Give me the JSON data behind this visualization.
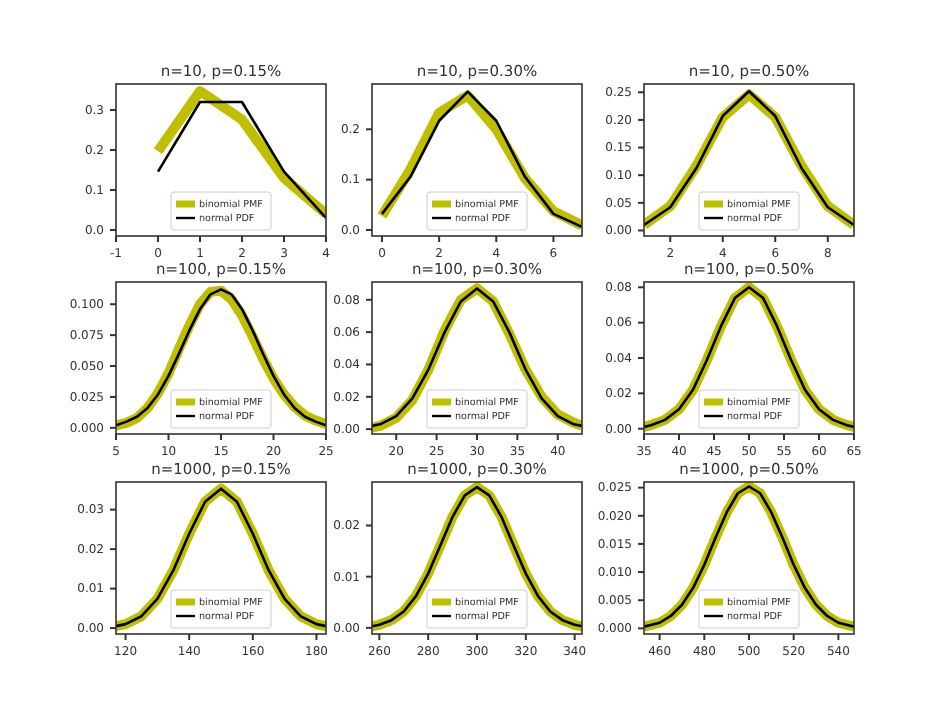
{
  "chart_data": [
    {
      "type": "line",
      "title": "n=10, p=0.15%",
      "xlim": [
        -1,
        4
      ],
      "xticks": [
        -1,
        0,
        1,
        2,
        3,
        4
      ],
      "ylim": [
        -0.015,
        0.365
      ],
      "yticks": [
        {
          "value": 0,
          "label": "0.0"
        },
        0.1,
        0.2,
        0.3
      ],
      "legend": "bottom",
      "series": [
        {
          "name": "binomial PMF",
          "color": "#bfbf00",
          "x": [
            0,
            1,
            2,
            3,
            4
          ],
          "values": [
            0.197,
            0.347,
            0.276,
            0.13,
            0.04
          ]
        },
        {
          "name": "normal PDF",
          "color": "#000000",
          "x": [
            0,
            1,
            2,
            3,
            4
          ],
          "values": [
            0.146,
            0.32,
            0.32,
            0.146,
            0.03
          ]
        }
      ]
    },
    {
      "type": "line",
      "title": "n=10, p=0.30%",
      "xlim": [
        -0.35,
        7
      ],
      "xticks": [
        0,
        2,
        4,
        6
      ],
      "ylim": [
        -0.012,
        0.29
      ],
      "yticks": [
        {
          "value": 0,
          "label": "0.0"
        },
        0.1,
        0.2
      ],
      "legend": "bottom",
      "series": [
        {
          "name": "binomial PMF",
          "color": "#bfbf00",
          "x": [
            0,
            1,
            2,
            3,
            4,
            5,
            6,
            7
          ],
          "values": [
            0.028,
            0.121,
            0.233,
            0.267,
            0.2,
            0.103,
            0.037,
            0.009
          ]
        },
        {
          "name": "normal PDF",
          "color": "#000000",
          "x": [
            0,
            1,
            2,
            3,
            4,
            5,
            6,
            7
          ],
          "values": [
            0.032,
            0.106,
            0.217,
            0.275,
            0.217,
            0.106,
            0.032,
            0.006
          ]
        }
      ]
    },
    {
      "type": "line",
      "title": "n=10, p=0.50%",
      "xlim": [
        1,
        9
      ],
      "xticks": [
        2,
        4,
        6,
        8
      ],
      "ylim": [
        -0.01,
        0.265
      ],
      "yticks": [
        {
          "value": 0,
          "label": "0.00"
        },
        0.05,
        {
          "value": 0.1,
          "label": "0.10"
        },
        0.15,
        {
          "value": 0.2,
          "label": "0.20"
        },
        0.25
      ],
      "legend": "bottom",
      "series": [
        {
          "name": "binomial PMF",
          "color": "#bfbf00",
          "x": [
            1,
            2,
            3,
            4,
            5,
            6,
            7,
            8,
            9
          ],
          "values": [
            0.01,
            0.044,
            0.117,
            0.205,
            0.246,
            0.205,
            0.117,
            0.044,
            0.01
          ]
        },
        {
          "name": "normal PDF",
          "color": "#000000",
          "x": [
            1,
            2,
            3,
            4,
            5,
            6,
            7,
            8,
            9
          ],
          "values": [
            0.01,
            0.042,
            0.113,
            0.207,
            0.252,
            0.207,
            0.113,
            0.042,
            0.01
          ]
        }
      ]
    },
    {
      "type": "line",
      "title": "n=100, p=0.15%",
      "xlim": [
        5,
        25
      ],
      "xticks": [
        5,
        10,
        15,
        20,
        25
      ],
      "ylim": [
        -0.005,
        0.118
      ],
      "yticks": [
        {
          "value": 0,
          "label": "0.000"
        },
        0.025,
        {
          "value": 0.05,
          "label": "0.050"
        },
        0.075,
        {
          "value": 0.1,
          "label": "0.100"
        }
      ],
      "legend": "bottom",
      "series": [
        {
          "name": "binomial PMF",
          "color": "#bfbf00",
          "x": [
            5,
            6,
            7,
            8,
            9,
            10,
            11,
            12,
            13,
            14,
            15,
            16,
            17,
            18,
            19,
            20,
            21,
            22,
            23,
            24,
            25
          ],
          "values": [
            0.002,
            0.004,
            0.008,
            0.016,
            0.028,
            0.044,
            0.064,
            0.083,
            0.1,
            0.11,
            0.111,
            0.104,
            0.091,
            0.074,
            0.056,
            0.04,
            0.027,
            0.017,
            0.01,
            0.006,
            0.003
          ]
        },
        {
          "name": "normal PDF",
          "color": "#000000",
          "x": [
            5,
            6,
            7,
            8,
            9,
            10,
            11,
            12,
            13,
            14,
            15,
            16,
            17,
            18,
            19,
            20,
            21,
            22,
            23,
            24,
            25
          ],
          "values": [
            0.002,
            0.005,
            0.009,
            0.016,
            0.027,
            0.042,
            0.06,
            0.079,
            0.096,
            0.108,
            0.112,
            0.108,
            0.096,
            0.079,
            0.06,
            0.042,
            0.027,
            0.016,
            0.009,
            0.005,
            0.002
          ]
        }
      ]
    },
    {
      "type": "line",
      "title": "n=100, p=0.30%",
      "xlim": [
        17,
        43
      ],
      "xticks": [
        20,
        25,
        30,
        35,
        40
      ],
      "ylim": [
        -0.003,
        0.091
      ],
      "yticks": [
        {
          "value": 0,
          "label": "0.00"
        },
        0.02,
        0.04,
        0.06,
        0.08
      ],
      "legend": "bottom",
      "series": [
        {
          "name": "binomial PMF",
          "color": "#bfbf00",
          "x": [
            17,
            18,
            20,
            22,
            24,
            26,
            28,
            30,
            32,
            34,
            36,
            38,
            40,
            42,
            43
          ],
          "values": [
            0.001,
            0.002,
            0.007,
            0.018,
            0.037,
            0.061,
            0.08,
            0.087,
            0.079,
            0.059,
            0.037,
            0.02,
            0.009,
            0.004,
            0.002
          ]
        },
        {
          "name": "normal PDF",
          "color": "#000000",
          "x": [
            17,
            18,
            20,
            22,
            24,
            26,
            28,
            30,
            32,
            34,
            36,
            38,
            40,
            42,
            43
          ],
          "values": [
            0.002,
            0.003,
            0.008,
            0.019,
            0.037,
            0.06,
            0.079,
            0.087,
            0.079,
            0.06,
            0.037,
            0.019,
            0.008,
            0.003,
            0.002
          ]
        }
      ]
    },
    {
      "type": "line",
      "title": "n=100, p=0.50%",
      "xlim": [
        35,
        65
      ],
      "xticks": [
        35,
        40,
        45,
        50,
        55,
        60,
        65
      ],
      "ylim": [
        -0.003,
        0.083
      ],
      "yticks": [
        {
          "value": 0,
          "label": "0.00"
        },
        0.02,
        0.04,
        0.06,
        0.08
      ],
      "legend": "bottom",
      "series": [
        {
          "name": "binomial PMF",
          "color": "#bfbf00",
          "x": [
            35,
            36,
            38,
            40,
            42,
            44,
            46,
            48,
            50,
            52,
            54,
            56,
            58,
            60,
            62,
            64,
            65
          ],
          "values": [
            0.001,
            0.002,
            0.005,
            0.011,
            0.022,
            0.039,
            0.058,
            0.074,
            0.08,
            0.074,
            0.058,
            0.039,
            0.022,
            0.011,
            0.005,
            0.002,
            0.001
          ]
        },
        {
          "name": "normal PDF",
          "color": "#000000",
          "x": [
            35,
            36,
            38,
            40,
            42,
            44,
            46,
            48,
            50,
            52,
            54,
            56,
            58,
            60,
            62,
            64,
            65
          ],
          "values": [
            0.001,
            0.002,
            0.005,
            0.011,
            0.022,
            0.039,
            0.058,
            0.074,
            0.08,
            0.074,
            0.058,
            0.039,
            0.022,
            0.011,
            0.005,
            0.002,
            0.001
          ]
        }
      ]
    },
    {
      "type": "line",
      "title": "n=1000, p=0.15%",
      "xlim": [
        117,
        183
      ],
      "xticks": [
        120,
        140,
        160,
        180
      ],
      "ylim": [
        -0.0015,
        0.037
      ],
      "yticks": [
        {
          "value": 0,
          "label": "0.00"
        },
        0.01,
        0.02,
        0.03
      ],
      "legend": "bottom",
      "series": [
        {
          "name": "binomial PMF",
          "color": "#bfbf00",
          "x": [
            117,
            120,
            125,
            130,
            135,
            140,
            145,
            150,
            155,
            160,
            165,
            170,
            175,
            180,
            183
          ],
          "values": [
            0.0005,
            0.001,
            0.003,
            0.0074,
            0.0146,
            0.0239,
            0.032,
            0.0353,
            0.032,
            0.0239,
            0.0146,
            0.0074,
            0.003,
            0.001,
            0.0005
          ]
        },
        {
          "name": "normal PDF",
          "color": "#000000",
          "x": [
            117,
            120,
            125,
            130,
            135,
            140,
            145,
            150,
            155,
            160,
            165,
            170,
            175,
            180,
            183
          ],
          "values": [
            0.0005,
            0.001,
            0.003,
            0.0074,
            0.0146,
            0.0239,
            0.032,
            0.0353,
            0.032,
            0.0239,
            0.0146,
            0.0074,
            0.003,
            0.001,
            0.0005
          ]
        }
      ]
    },
    {
      "type": "line",
      "title": "n=1000, p=0.30%",
      "xlim": [
        257,
        343
      ],
      "xticks": [
        260,
        280,
        300,
        320,
        340
      ],
      "ylim": [
        -0.0012,
        0.0285
      ],
      "yticks": [
        {
          "value": 0,
          "label": "0.00"
        },
        0.01,
        0.02
      ],
      "legend": "bottom",
      "series": [
        {
          "name": "binomial PMF",
          "color": "#bfbf00",
          "x": [
            257,
            260,
            265,
            270,
            275,
            280,
            285,
            290,
            295,
            300,
            305,
            310,
            315,
            320,
            325,
            330,
            335,
            340,
            343
          ],
          "values": [
            0.0003,
            0.0006,
            0.0015,
            0.0032,
            0.0062,
            0.0106,
            0.0161,
            0.0217,
            0.0259,
            0.0275,
            0.0259,
            0.0217,
            0.0161,
            0.0106,
            0.0062,
            0.0032,
            0.0015,
            0.0006,
            0.0003
          ]
        },
        {
          "name": "normal PDF",
          "color": "#000000",
          "x": [
            257,
            260,
            265,
            270,
            275,
            280,
            285,
            290,
            295,
            300,
            305,
            310,
            315,
            320,
            325,
            330,
            335,
            340,
            343
          ],
          "values": [
            0.0003,
            0.0006,
            0.0015,
            0.0032,
            0.0062,
            0.0106,
            0.0161,
            0.0217,
            0.0259,
            0.0275,
            0.0259,
            0.0217,
            0.0161,
            0.0106,
            0.0062,
            0.0032,
            0.0015,
            0.0006,
            0.0003
          ]
        }
      ]
    },
    {
      "type": "line",
      "title": "n=1000, p=0.50%",
      "xlim": [
        453,
        547
      ],
      "xticks": [
        460,
        480,
        500,
        520,
        540
      ],
      "ylim": [
        -0.001,
        0.026
      ],
      "yticks": [
        {
          "value": 0,
          "label": "0.000"
        },
        0.005,
        {
          "value": 0.01,
          "label": "0.010"
        },
        0.015,
        {
          "value": 0.02,
          "label": "0.020"
        },
        0.025
      ],
      "legend": "bottom",
      "series": [
        {
          "name": "binomial PMF",
          "color": "#bfbf00",
          "x": [
            453,
            460,
            465,
            470,
            475,
            480,
            485,
            490,
            495,
            500,
            505,
            510,
            515,
            520,
            525,
            530,
            535,
            540,
            547
          ],
          "values": [
            0.0003,
            0.001,
            0.0022,
            0.0042,
            0.0072,
            0.0113,
            0.0161,
            0.0206,
            0.024,
            0.0252,
            0.024,
            0.0206,
            0.0161,
            0.0113,
            0.0072,
            0.0042,
            0.0022,
            0.001,
            0.0003
          ]
        },
        {
          "name": "normal PDF",
          "color": "#000000",
          "x": [
            453,
            460,
            465,
            470,
            475,
            480,
            485,
            490,
            495,
            500,
            505,
            510,
            515,
            520,
            525,
            530,
            535,
            540,
            547
          ],
          "values": [
            0.0003,
            0.001,
            0.0022,
            0.0042,
            0.0072,
            0.0113,
            0.0161,
            0.0206,
            0.024,
            0.0252,
            0.024,
            0.0206,
            0.0161,
            0.0113,
            0.0072,
            0.0042,
            0.0022,
            0.001,
            0.0003
          ]
        }
      ]
    }
  ]
}
